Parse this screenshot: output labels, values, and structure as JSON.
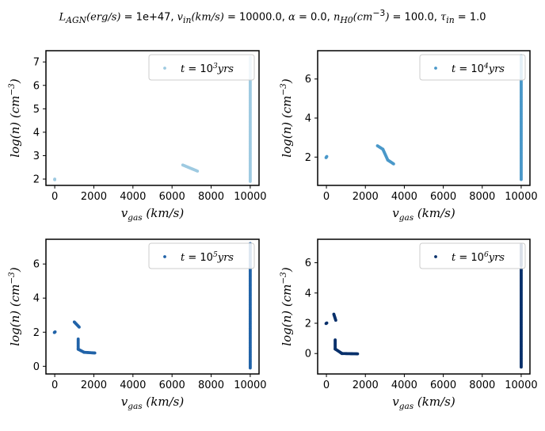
{
  "suptitle": "L_AGN(erg/s) = 1e+47, v_in(km/s) = 10000.0, α = 0.0, n_H0(cm^-3) = 100.0, τ_in = 1.0",
  "suptitle_parts": {
    "lagn_label": "L",
    "lagn_sub": "AGN",
    "lagn_unit": "(erg/s)",
    "lagn_val": " = 1e+47, ",
    "vin_label": "v",
    "vin_sub": "in",
    "vin_unit": "(km/s)",
    "vin_val": " = 10000.0, ",
    "alpha_label": "α",
    "alpha_val": " = 0.0, ",
    "nh_label": "n",
    "nh_sub": "H0",
    "nh_unit": "(cm",
    "nh_exp": "−3",
    "nh_close": ")",
    "nh_val": " = 100.0, ",
    "tau_label": "τ",
    "tau_sub": "in",
    "tau_val": " = 1.0"
  },
  "chart_data": [
    {
      "type": "scatter",
      "panel": "top-left",
      "xlabel": "v_gas   (km/s)",
      "ylabel": "log(n)   (cm^-3)",
      "xlim": [
        -450,
        10450
      ],
      "ylim": [
        1.73,
        7.48
      ],
      "xticks": [
        0,
        2000,
        4000,
        6000,
        8000,
        10000
      ],
      "yticks": [
        2,
        3,
        4,
        5,
        6,
        7
      ],
      "legend": "t = 10^3 yrs",
      "legend_exp": "3",
      "legend_position": "top-right",
      "color": "#9ecae1",
      "segments": [
        {
          "x": [
            0,
            0
          ],
          "y": [
            1.97,
            2.0
          ]
        },
        {
          "x": [
            6550,
            7300
          ],
          "y": [
            2.6,
            2.34
          ]
        },
        {
          "x": [
            10000,
            10000
          ],
          "y": [
            1.9,
            7.2
          ]
        }
      ]
    },
    {
      "type": "scatter",
      "panel": "top-right",
      "xlabel": "v_gas   (km/s)",
      "ylabel": "log(n)   (cm^-3)",
      "xlim": [
        -450,
        10450
      ],
      "ylim": [
        0.55,
        7.45
      ],
      "xticks": [
        0,
        2000,
        4000,
        6000,
        8000,
        10000
      ],
      "yticks": [
        2,
        4,
        6
      ],
      "legend": "t = 10^4 yrs",
      "legend_exp": "4",
      "legend_position": "top-right",
      "color": "#4a98c9",
      "segments": [
        {
          "x": [
            -20,
            20
          ],
          "y": [
            1.97,
            2.03
          ]
        },
        {
          "x": [
            2620,
            2900
          ],
          "y": [
            2.58,
            2.4
          ]
        },
        {
          "x": [
            2900,
            3150
          ],
          "y": [
            2.4,
            1.85
          ]
        },
        {
          "x": [
            3150,
            3450
          ],
          "y": [
            1.85,
            1.65
          ]
        },
        {
          "x": [
            10000,
            10000
          ],
          "y": [
            0.85,
            7.2
          ]
        }
      ]
    },
    {
      "type": "scatter",
      "panel": "bottom-left",
      "xlabel": "v_gas   (km/s)",
      "ylabel": "log(n)   (cm^-3)",
      "xlim": [
        -450,
        10450
      ],
      "ylim": [
        -0.45,
        7.45
      ],
      "xticks": [
        0,
        2000,
        4000,
        6000,
        8000,
        10000
      ],
      "yticks": [
        0,
        2,
        4,
        6
      ],
      "legend": "t = 10^5 yrs",
      "legend_exp": "5",
      "legend_position": "top-right",
      "color": "#2163a8",
      "segments": [
        {
          "x": [
            -20,
            20
          ],
          "y": [
            1.98,
            2.02
          ]
        },
        {
          "x": [
            1000,
            1250
          ],
          "y": [
            2.6,
            2.3
          ]
        },
        {
          "x": [
            1200,
            1200
          ],
          "y": [
            1.6,
            1.0
          ]
        },
        {
          "x": [
            1200,
            1500
          ],
          "y": [
            1.0,
            0.82
          ]
        },
        {
          "x": [
            1500,
            2050
          ],
          "y": [
            0.82,
            0.78
          ]
        },
        {
          "x": [
            10000,
            10000
          ],
          "y": [
            -0.1,
            7.2
          ]
        }
      ]
    },
    {
      "type": "scatter",
      "panel": "bottom-right",
      "xlabel": "v_gas   (km/s)",
      "ylabel": "log(n)   (cm^-3)",
      "xlim": [
        -450,
        10450
      ],
      "ylim": [
        -1.35,
        7.55
      ],
      "xticks": [
        0,
        2000,
        4000,
        6000,
        8000,
        10000
      ],
      "yticks": [
        0,
        2,
        4,
        6
      ],
      "legend": "t = 10^6 yrs",
      "legend_exp": "6",
      "legend_position": "top-right",
      "color": "#08306b",
      "segments": [
        {
          "x": [
            -20,
            20
          ],
          "y": [
            1.98,
            2.02
          ]
        },
        {
          "x": [
            380,
            480
          ],
          "y": [
            2.6,
            2.2
          ]
        },
        {
          "x": [
            450,
            450
          ],
          "y": [
            0.9,
            0.3
          ]
        },
        {
          "x": [
            450,
            800
          ],
          "y": [
            0.3,
            0.0
          ]
        },
        {
          "x": [
            800,
            1600
          ],
          "y": [
            0.0,
            -0.02
          ]
        },
        {
          "x": [
            10000,
            10000
          ],
          "y": [
            -0.9,
            5.6
          ]
        },
        {
          "x": [
            10000,
            10000
          ],
          "y": [
            5.8,
            7.2
          ]
        }
      ]
    }
  ]
}
